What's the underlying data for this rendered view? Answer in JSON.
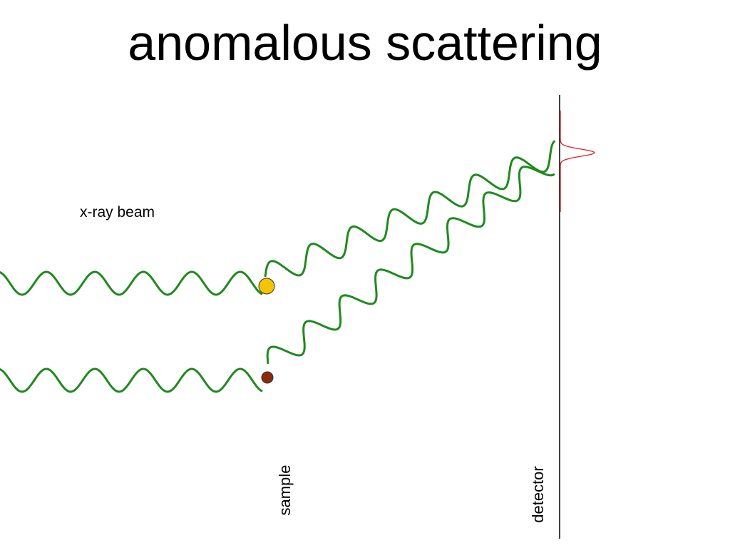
{
  "title": "anomalous scattering",
  "labels": {
    "beam": "x-ray beam",
    "sample": "sample",
    "detector": "detector"
  },
  "colors": {
    "wave": "#1f8a1f",
    "atom_normal": "#f5c400",
    "atom_anomalous": "#8b2a0c",
    "detector_line": "#000000",
    "peak": "#e02020"
  },
  "icons": {
    "atom_normal": "yellow-circle",
    "atom_anomalous": "brown-circle"
  }
}
